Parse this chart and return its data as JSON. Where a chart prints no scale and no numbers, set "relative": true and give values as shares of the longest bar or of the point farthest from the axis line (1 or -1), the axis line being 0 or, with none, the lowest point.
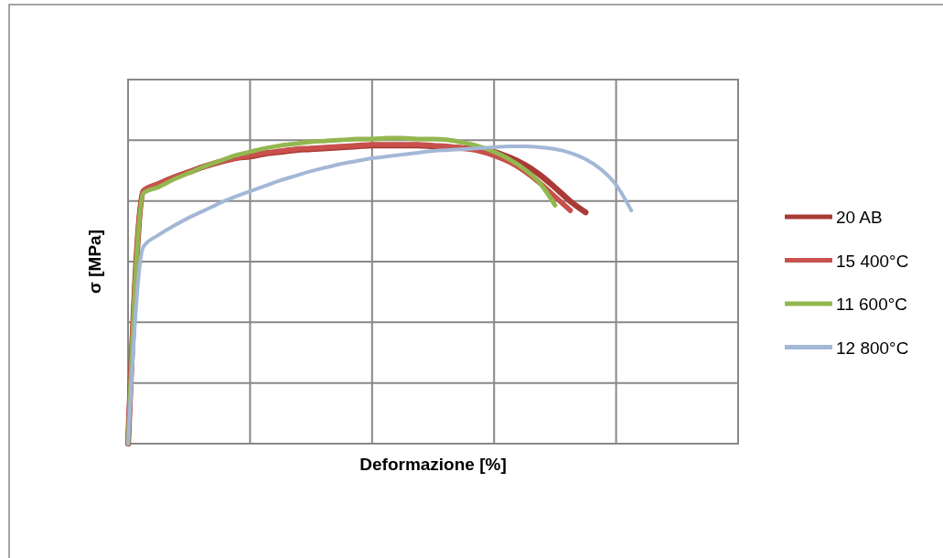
{
  "chart_data": {
    "type": "line",
    "relative": true,
    "xlabel": "Deformazione [%]",
    "ylabel": "σ [MPa]",
    "grid": true,
    "legend": "right",
    "line_style": "solid",
    "categories": [
      null,
      null,
      null,
      null,
      null,
      null,
      null,
      null,
      null,
      null,
      null,
      null,
      null,
      null,
      null,
      null,
      null,
      null,
      null,
      null,
      null,
      null,
      null,
      null,
      null,
      null,
      null,
      null,
      null,
      null,
      null,
      null,
      null,
      null,
      null,
      null,
      null,
      null,
      null,
      null,
      null
    ],
    "series": [
      {
        "name": "20 AB",
        "color": "#a93a35",
        "values": [
          0,
          0.826,
          0.85,
          0.871,
          0.889,
          0.907,
          0.922,
          0.934,
          0.94,
          0.949,
          0.955,
          0.961,
          0.964,
          0.967,
          0.97,
          0.973,
          0.976,
          0.976,
          0.976,
          0.976,
          0.973,
          0.97,
          0.967,
          0.964,
          0.955,
          0.937,
          0.913,
          0.88,
          0.838,
          0.793,
          0.757,
          null,
          null,
          null,
          null,
          null,
          null,
          null,
          null,
          null,
          null
        ]
      },
      {
        "name": "15 400°C",
        "color": "#c9504c",
        "values": [
          0,
          0.826,
          0.85,
          0.871,
          0.889,
          0.907,
          0.922,
          0.934,
          0.943,
          0.952,
          0.958,
          0.964,
          0.967,
          0.97,
          0.973,
          0.976,
          0.979,
          0.979,
          0.979,
          0.979,
          0.976,
          0.973,
          0.967,
          0.958,
          0.943,
          0.922,
          0.892,
          0.853,
          0.808,
          0.763,
          null,
          null,
          null,
          null,
          null,
          null,
          null,
          null,
          null,
          null,
          null
        ]
      },
      {
        "name": "11 600°C",
        "color": "#93b74f",
        "values": [
          0,
          0.82,
          0.84,
          0.865,
          0.886,
          0.907,
          0.925,
          0.943,
          0.955,
          0.967,
          0.976,
          0.982,
          0.988,
          0.991,
          0.994,
          0.997,
          0.997,
          1,
          1,
          0.997,
          0.997,
          0.994,
          0.985,
          0.973,
          0.955,
          0.931,
          0.898,
          0.853,
          0.78,
          null,
          null,
          null,
          null,
          null,
          null,
          null,
          null,
          null,
          null,
          null,
          null
        ]
      },
      {
        "name": "12 800°C",
        "color": "#a3b7d6",
        "values": [
          0,
          0.644,
          0.683,
          0.713,
          0.74,
          0.763,
          0.787,
          0.808,
          0.826,
          0.844,
          0.862,
          0.877,
          0.892,
          0.904,
          0.916,
          0.925,
          0.934,
          0.94,
          0.946,
          0.952,
          0.958,
          0.961,
          0.964,
          0.967,
          0.97,
          0.973,
          0.973,
          0.97,
          0.964,
          0.952,
          0.931,
          0.898,
          0.847,
          0.763,
          null,
          null,
          null,
          null,
          null,
          null,
          null
        ]
      }
    ]
  }
}
